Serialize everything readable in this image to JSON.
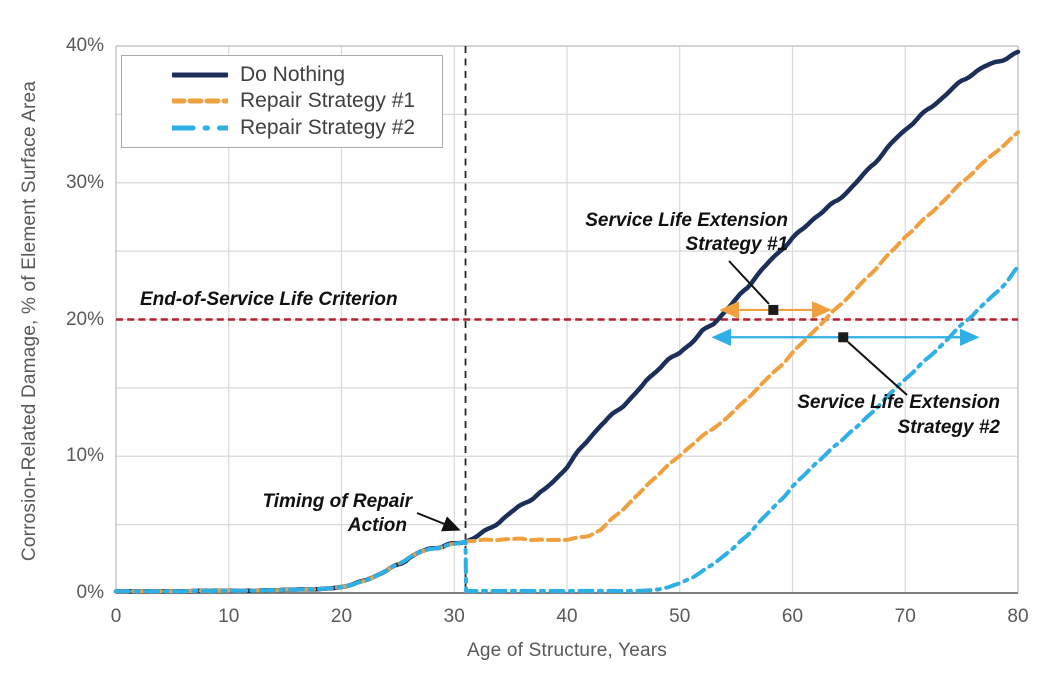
{
  "chart_data": {
    "type": "line",
    "title": "",
    "xlabel": "Age of Structure, Years",
    "ylabel": "Corrosion-Related Damage, % of Element Surface Area",
    "xlim": [
      0,
      80
    ],
    "ylim": [
      0,
      40
    ],
    "x_ticks": [
      0,
      10,
      20,
      30,
      40,
      50,
      60,
      70,
      80
    ],
    "y_ticks": [
      {
        "pct": 0,
        "label": "0%"
      },
      {
        "pct": 10,
        "label": "10%"
      },
      {
        "pct": 20,
        "label": "20%"
      },
      {
        "pct": 30,
        "label": "30%"
      },
      {
        "pct": 40,
        "label": "40%"
      }
    ],
    "grid": {
      "x_interval_years": 10,
      "y_interval_pct": 5,
      "color": "#d9d9d9"
    },
    "legend_position": "top-left",
    "series": [
      {
        "name": "Do Nothing",
        "color": "#1c2f58",
        "style": "solid",
        "width": 4.5,
        "points": [
          [
            0,
            0.12
          ],
          [
            2,
            0.12
          ],
          [
            4,
            0.13
          ],
          [
            6,
            0.14
          ],
          [
            8,
            0.15
          ],
          [
            10,
            0.16
          ],
          [
            12,
            0.18
          ],
          [
            14,
            0.2
          ],
          [
            16,
            0.24
          ],
          [
            18,
            0.3
          ],
          [
            19,
            0.35
          ],
          [
            20,
            0.45
          ],
          [
            21,
            0.6
          ],
          [
            22,
            0.85
          ],
          [
            23,
            1.2
          ],
          [
            24,
            1.65
          ],
          [
            25,
            2.15
          ],
          [
            26,
            2.65
          ],
          [
            27,
            3.0
          ],
          [
            28,
            3.2
          ],
          [
            29,
            3.35
          ],
          [
            30,
            3.55
          ],
          [
            31,
            3.8
          ],
          [
            32,
            4.25
          ],
          [
            33,
            4.7
          ],
          [
            34,
            5.2
          ],
          [
            35,
            5.8
          ],
          [
            36,
            6.35
          ],
          [
            37,
            6.95
          ],
          [
            38,
            7.6
          ],
          [
            39,
            8.4
          ],
          [
            40,
            9.3
          ],
          [
            41,
            10.3
          ],
          [
            42,
            11.25
          ],
          [
            43,
            12.2
          ],
          [
            44,
            13.0
          ],
          [
            45,
            13.8
          ],
          [
            46,
            14.6
          ],
          [
            47,
            15.5
          ],
          [
            48,
            16.3
          ],
          [
            49,
            16.95
          ],
          [
            50,
            17.5
          ],
          [
            51,
            18.3
          ],
          [
            52,
            19.2
          ],
          [
            53,
            19.8
          ],
          [
            54,
            20.6
          ],
          [
            55,
            21.4
          ],
          [
            56,
            22.3
          ],
          [
            57,
            23.3
          ],
          [
            58,
            24.3
          ],
          [
            59,
            25.2
          ],
          [
            60,
            26.0
          ],
          [
            61,
            26.7
          ],
          [
            62,
            27.4
          ],
          [
            63,
            28.0
          ],
          [
            64,
            28.7
          ],
          [
            65,
            29.5
          ],
          [
            66,
            30.4
          ],
          [
            67,
            31.3
          ],
          [
            68,
            32.1
          ],
          [
            69,
            33.0
          ],
          [
            70,
            33.8
          ],
          [
            71,
            34.6
          ],
          [
            72,
            35.4
          ],
          [
            73,
            36.1
          ],
          [
            74,
            36.8
          ],
          [
            75,
            37.4
          ],
          [
            76,
            37.9
          ],
          [
            77,
            38.4
          ],
          [
            78,
            38.8
          ],
          [
            79,
            39.2
          ],
          [
            80,
            39.6
          ]
        ]
      },
      {
        "name": "Repair Strategy #1",
        "color": "#f1a03f",
        "style": "dashed",
        "width": 4,
        "points": [
          [
            0,
            0.12
          ],
          [
            2,
            0.12
          ],
          [
            4,
            0.13
          ],
          [
            6,
            0.14
          ],
          [
            8,
            0.15
          ],
          [
            10,
            0.16
          ],
          [
            12,
            0.18
          ],
          [
            14,
            0.2
          ],
          [
            16,
            0.24
          ],
          [
            18,
            0.3
          ],
          [
            19,
            0.35
          ],
          [
            20,
            0.45
          ],
          [
            21,
            0.6
          ],
          [
            22,
            0.85
          ],
          [
            23,
            1.2
          ],
          [
            24,
            1.65
          ],
          [
            25,
            2.15
          ],
          [
            26,
            2.65
          ],
          [
            27,
            3.0
          ],
          [
            28,
            3.2
          ],
          [
            29,
            3.35
          ],
          [
            30,
            3.55
          ],
          [
            31,
            3.8
          ],
          [
            32,
            3.9
          ],
          [
            34,
            3.9
          ],
          [
            36,
            3.9
          ],
          [
            38,
            3.9
          ],
          [
            40,
            3.95
          ],
          [
            41,
            4.0
          ],
          [
            42,
            4.15
          ],
          [
            43,
            4.6
          ],
          [
            44,
            5.4
          ],
          [
            45,
            6.2
          ],
          [
            46,
            7.0
          ],
          [
            47,
            7.8
          ],
          [
            48,
            8.6
          ],
          [
            49,
            9.3
          ],
          [
            50,
            10.0
          ],
          [
            51,
            10.8
          ],
          [
            52,
            11.5
          ],
          [
            53,
            12.1
          ],
          [
            54,
            12.7
          ],
          [
            55,
            13.4
          ],
          [
            56,
            14.2
          ],
          [
            57,
            15.0
          ],
          [
            58,
            15.9
          ],
          [
            59,
            16.7
          ],
          [
            60,
            17.6
          ],
          [
            61,
            18.4
          ],
          [
            62,
            19.2
          ],
          [
            63,
            20.0
          ],
          [
            64,
            20.9
          ],
          [
            65,
            21.7
          ],
          [
            66,
            22.6
          ],
          [
            67,
            23.4
          ],
          [
            68,
            24.3
          ],
          [
            69,
            25.1
          ],
          [
            70,
            26.0
          ],
          [
            71,
            26.8
          ],
          [
            72,
            27.6
          ],
          [
            73,
            28.4
          ],
          [
            74,
            29.2
          ],
          [
            75,
            30.0
          ],
          [
            76,
            30.7
          ],
          [
            77,
            31.5
          ],
          [
            78,
            32.2
          ],
          [
            79,
            33.0
          ],
          [
            80,
            33.7
          ]
        ]
      },
      {
        "name": "Repair Strategy #2",
        "color": "#2eafe5",
        "style": "dashdot",
        "width": 4,
        "points": [
          [
            0,
            0.12
          ],
          [
            2,
            0.12
          ],
          [
            4,
            0.13
          ],
          [
            6,
            0.14
          ],
          [
            8,
            0.15
          ],
          [
            10,
            0.16
          ],
          [
            12,
            0.18
          ],
          [
            14,
            0.2
          ],
          [
            16,
            0.24
          ],
          [
            18,
            0.3
          ],
          [
            19,
            0.35
          ],
          [
            20,
            0.45
          ],
          [
            21,
            0.6
          ],
          [
            22,
            0.85
          ],
          [
            23,
            1.2
          ],
          [
            24,
            1.65
          ],
          [
            25,
            2.15
          ],
          [
            26,
            2.65
          ],
          [
            27,
            3.0
          ],
          [
            28,
            3.2
          ],
          [
            29,
            3.35
          ],
          [
            30,
            3.55
          ],
          [
            31,
            3.8
          ],
          [
            31.05,
            0.15
          ],
          [
            33,
            0.15
          ],
          [
            35,
            0.15
          ],
          [
            37,
            0.15
          ],
          [
            39,
            0.15
          ],
          [
            41,
            0.15
          ],
          [
            43,
            0.15
          ],
          [
            45,
            0.15
          ],
          [
            47,
            0.18
          ],
          [
            48,
            0.25
          ],
          [
            49,
            0.4
          ],
          [
            50,
            0.7
          ],
          [
            51,
            1.1
          ],
          [
            52,
            1.6
          ],
          [
            53,
            2.2
          ],
          [
            54,
            2.8
          ],
          [
            55,
            3.4
          ],
          [
            56,
            4.2
          ],
          [
            57,
            5.1
          ],
          [
            58,
            6.0
          ],
          [
            59,
            6.9
          ],
          [
            60,
            7.8
          ],
          [
            61,
            8.6
          ],
          [
            62,
            9.4
          ],
          [
            63,
            10.1
          ],
          [
            64,
            10.9
          ],
          [
            65,
            11.7
          ],
          [
            66,
            12.4
          ],
          [
            67,
            13.2
          ],
          [
            68,
            14.0
          ],
          [
            69,
            14.8
          ],
          [
            70,
            15.6
          ],
          [
            71,
            16.4
          ],
          [
            72,
            17.2
          ],
          [
            73,
            18.0
          ],
          [
            74,
            18.8
          ],
          [
            75,
            19.6
          ],
          [
            76,
            20.3
          ],
          [
            77,
            21.1
          ],
          [
            78,
            21.9
          ],
          [
            79,
            22.8
          ],
          [
            80,
            23.9
          ]
        ]
      }
    ],
    "reference_lines": [
      {
        "name": "end-of-service-life-criterion",
        "axis": "y",
        "value_pct": 20,
        "color": "#b31e30",
        "style": "dashed"
      },
      {
        "name": "timing-of-repair-action",
        "axis": "x",
        "value_year": 31,
        "color": "#262626",
        "style": "dashed"
      }
    ],
    "arrows": [
      {
        "name": "service-life-extension-1",
        "color": "#f1a03f",
        "y_pct": 20.7,
        "x1_year": 53.9,
        "x2_year": 63.1,
        "marker_year": 58.3,
        "double_headed": true
      },
      {
        "name": "service-life-extension-2",
        "color": "#2eafe5",
        "y_pct": 18.7,
        "x1_year": 53.2,
        "x2_year": 76.2,
        "marker_year": 64.5,
        "double_headed": true
      }
    ]
  },
  "legend": {
    "items": [
      {
        "label": "Do Nothing"
      },
      {
        "label": "Repair Strategy #1"
      },
      {
        "label": "Repair Strategy #2"
      }
    ]
  },
  "annotations": {
    "eol": {
      "text": "End-of-Service Life Criterion"
    },
    "timing": {
      "line1": "Timing of Repair",
      "line2": "Action"
    },
    "sle1": {
      "line1": "Service Life Extension",
      "line2": "Strategy #1"
    },
    "sle2": {
      "line1": "Service Life Extension",
      "line2": "Strategy #2"
    }
  }
}
